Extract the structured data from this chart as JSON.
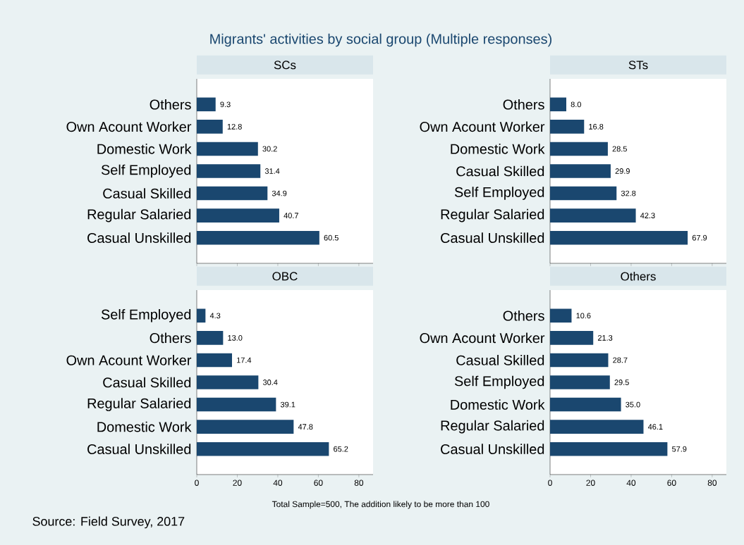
{
  "chart_data": [
    {
      "type": "other",
      "title": "Migrants' activities by social group (Multiple responses)",
      "annotations": [
        "Total Sample=500, The addition likely to be more than 100",
        "Source: Field Survey, 2017"
      ]
    },
    {
      "type": "bar",
      "orientation": "horizontal",
      "title": "SCs",
      "categories": [
        "Others",
        "Own Acount Worker",
        "Domestic Work",
        "Self Employed",
        "Casual Skilled",
        "Regular Salaried",
        "Casual Unskilled"
      ],
      "values": [
        9.3,
        12.8,
        30.2,
        31.4,
        34.9,
        40.7,
        60.5
      ],
      "value_labels": [
        "9.3",
        "12.8",
        "30.2",
        "31.4",
        "34.9",
        "40.7",
        "60.5"
      ],
      "color": "#1a476f",
      "xlim": [
        0,
        87
      ],
      "xticks": [
        0,
        20,
        40,
        60,
        80
      ],
      "tick_labels": "y"
    },
    {
      "type": "bar",
      "orientation": "horizontal",
      "title": "STs",
      "categories": [
        "Others",
        "Own Acount Worker",
        "Domestic Work",
        "Casual Skilled",
        "Self Employed",
        "Regular Salaried",
        "Casual Unskilled"
      ],
      "values": [
        8.0,
        16.8,
        28.5,
        29.9,
        32.8,
        42.3,
        67.9
      ],
      "value_labels": [
        "8.0",
        "16.8",
        "28.5",
        "29.9",
        "32.8",
        "42.3",
        "67.9"
      ],
      "color": "#1a476f",
      "xlim": [
        0,
        87
      ],
      "xticks": [
        0,
        20,
        40,
        60,
        80
      ],
      "tick_labels": "y"
    },
    {
      "type": "bar",
      "orientation": "horizontal",
      "title": "OBC",
      "categories": [
        "Self Employed",
        "Others",
        "Own Acount Worker",
        "Casual Skilled",
        "Regular Salaried",
        "Domestic Work",
        "Casual Unskilled"
      ],
      "values": [
        4.3,
        13.0,
        17.4,
        30.4,
        39.1,
        47.8,
        65.2
      ],
      "value_labels": [
        "4.3",
        "13.0",
        "17.4",
        "30.4",
        "39.1",
        "47.8",
        "65.2"
      ],
      "color": "#1a476f",
      "xlim": [
        0,
        87
      ],
      "xticks": [
        0,
        20,
        40,
        60,
        80
      ]
    },
    {
      "type": "bar",
      "orientation": "horizontal",
      "title": "Others",
      "categories": [
        "Others",
        "Own Acount Worker",
        "Casual Skilled",
        "Self Employed",
        "Domestic Work",
        "Regular Salaried",
        "Casual Unskilled"
      ],
      "values": [
        10.6,
        21.3,
        28.7,
        29.5,
        35.0,
        46.1,
        57.9
      ],
      "value_labels": [
        "10.6",
        "21.3",
        "28.7",
        "29.5",
        "35.0",
        "46.1",
        "57.9"
      ],
      "color": "#1a476f",
      "xlim": [
        0,
        87
      ],
      "xticks": [
        0,
        20,
        40,
        60,
        80
      ]
    }
  ]
}
